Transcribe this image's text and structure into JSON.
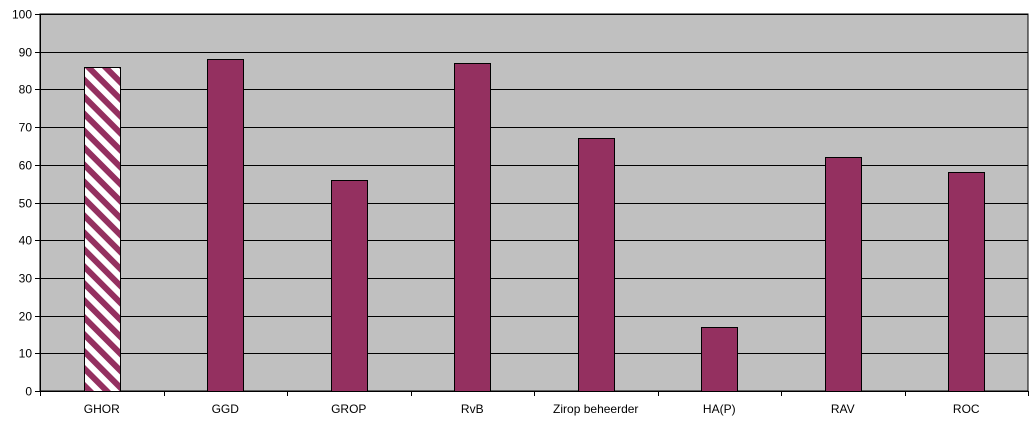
{
  "chart_data": {
    "type": "bar",
    "title": "",
    "xlabel": "",
    "ylabel": "",
    "categories": [
      "GHOR",
      "GGD",
      "GROP",
      "RvB",
      "Zirop beheerder",
      "HA(P)",
      "RAV",
      "ROC"
    ],
    "values": [
      86,
      88,
      56,
      87,
      67,
      17,
      62,
      58
    ],
    "ylim": [
      0,
      100
    ],
    "yticks": [
      0,
      10,
      20,
      30,
      40,
      50,
      60,
      70,
      80,
      90,
      100
    ],
    "grid": true,
    "legend": "none",
    "highlighted_category": "GHOR",
    "colors": {
      "bar_fill": "#943060",
      "bar_stroke": "#000000",
      "hatch_stripe": "#943060",
      "hatch_background": "#ffffff",
      "plot_background": "#c0c0c0",
      "gridline": "#000000",
      "axis": "#000000"
    }
  }
}
